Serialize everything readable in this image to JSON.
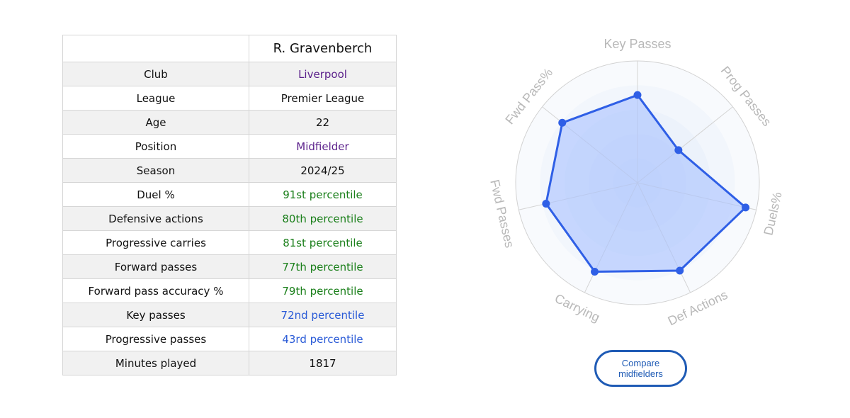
{
  "table": {
    "player_name": "R. Gravenberch",
    "rows": [
      {
        "label": "Club",
        "value": "Liverpool",
        "color": "purple"
      },
      {
        "label": "League",
        "value": "Premier League",
        "color": "black"
      },
      {
        "label": "Age",
        "value": "22",
        "color": "black"
      },
      {
        "label": "Position",
        "value": "Midfielder",
        "color": "purple"
      },
      {
        "label": "Season",
        "value": "2024/25",
        "color": "black"
      },
      {
        "label": "Duel %",
        "value": "91st percentile",
        "color": "green"
      },
      {
        "label": "Defensive actions",
        "value": "80th percentile",
        "color": "green"
      },
      {
        "label": "Progressive carries",
        "value": "81st percentile",
        "color": "green"
      },
      {
        "label": "Forward passes",
        "value": "77th percentile",
        "color": "green"
      },
      {
        "label": "Forward pass accuracy %",
        "value": "79th percentile",
        "color": "green"
      },
      {
        "label": "Key passes",
        "value": "72nd percentile",
        "color": "blue"
      },
      {
        "label": "Progressive passes",
        "value": "43rd percentile",
        "color": "blue"
      },
      {
        "label": "Minutes played",
        "value": "1817",
        "color": "black"
      }
    ]
  },
  "chart_data": {
    "type": "radar",
    "axes": [
      "Key Passes",
      "Prog Passes",
      "Duels%",
      "Def Actions",
      "Carrying",
      "Fwd Passes",
      "Fwd Pass%"
    ],
    "values": [
      72,
      43,
      91,
      80,
      81,
      77,
      79
    ],
    "range": [
      0,
      100
    ],
    "fill_color": "#a9c1ff",
    "line_color": "#2f5fe6"
  },
  "compare_button": {
    "line1": "Compare",
    "line2": "midfielders"
  }
}
